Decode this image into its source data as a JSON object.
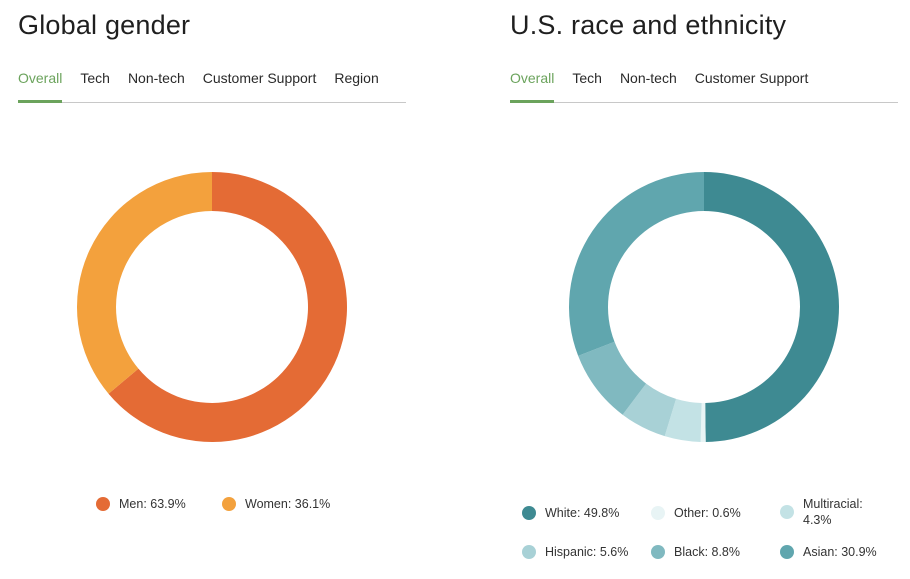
{
  "chart_data": [
    {
      "type": "pie",
      "title": "Global gender",
      "tabs": [
        "Overall",
        "Tech",
        "Non-tech",
        "Customer Support",
        "Region"
      ],
      "active_tab": "Overall",
      "series": [
        {
          "name": "Men",
          "value": 63.9,
          "label": "Men: 63.9%",
          "color": "#e46b35"
        },
        {
          "name": "Women",
          "value": 36.1,
          "label": "Women: 36.1%",
          "color": "#f3a13d"
        }
      ]
    },
    {
      "type": "pie",
      "title": "U.S. race and ethnicity",
      "tabs": [
        "Overall",
        "Tech",
        "Non-tech",
        "Customer Support"
      ],
      "active_tab": "Overall",
      "series": [
        {
          "name": "White",
          "value": 49.8,
          "label": "White: 49.8%",
          "color": "#3e8a92"
        },
        {
          "name": "Other",
          "value": 0.6,
          "label": "Other: 0.6%",
          "color": "#e8f4f5"
        },
        {
          "name": "Multiracial",
          "value": 4.3,
          "label": "Multiracial: 4.3%",
          "color": "#c3e2e5"
        },
        {
          "name": "Hispanic",
          "value": 5.6,
          "label": "Hispanic: 5.6%",
          "color": "#a8d1d6"
        },
        {
          "name": "Black",
          "value": 8.8,
          "label": "Black: 8.8%",
          "color": "#80b9c0"
        },
        {
          "name": "Asian",
          "value": 30.9,
          "label": "Asian: 30.9%",
          "color": "#60a6ae"
        }
      ]
    }
  ]
}
